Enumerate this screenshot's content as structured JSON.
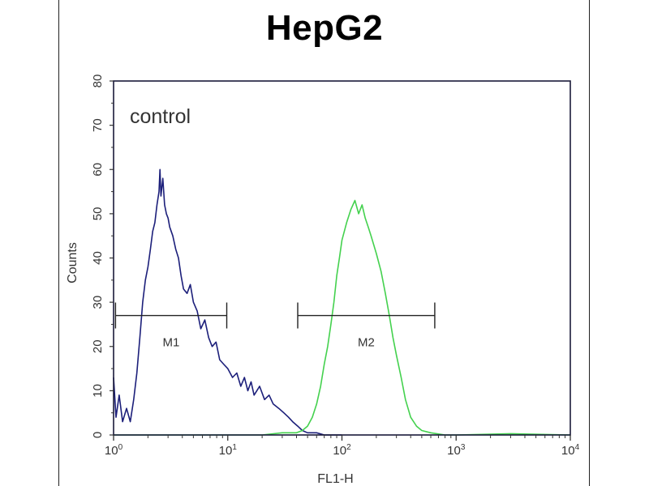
{
  "chart_data": {
    "type": "line",
    "title": "HepG2",
    "xlabel": "FL1-H",
    "ylabel": "Counts",
    "x_scale": "log",
    "xlim": [
      1,
      10000
    ],
    "ylim": [
      0,
      80
    ],
    "x_ticks": [
      {
        "value": 1,
        "base": "10",
        "exp": "0"
      },
      {
        "value": 10,
        "base": "10",
        "exp": "1"
      },
      {
        "value": 100,
        "base": "10",
        "exp": "2"
      },
      {
        "value": 1000,
        "base": "10",
        "exp": "3"
      },
      {
        "value": 10000,
        "base": "10",
        "exp": "4"
      }
    ],
    "y_ticks": [
      "0",
      "10",
      "20",
      "30",
      "40",
      "50",
      "60",
      "70",
      "80"
    ],
    "annotation": "control",
    "series": [
      {
        "color": "#1c1f7a",
        "points": [
          [
            1.0,
            13
          ],
          [
            1.05,
            4
          ],
          [
            1.12,
            9
          ],
          [
            1.2,
            3
          ],
          [
            1.3,
            6
          ],
          [
            1.4,
            3
          ],
          [
            1.5,
            8
          ],
          [
            1.6,
            14
          ],
          [
            1.7,
            22
          ],
          [
            1.8,
            30
          ],
          [
            1.9,
            35
          ],
          [
            2.0,
            38
          ],
          [
            2.1,
            42
          ],
          [
            2.2,
            46
          ],
          [
            2.3,
            48
          ],
          [
            2.4,
            52
          ],
          [
            2.5,
            55
          ],
          [
            2.55,
            60
          ],
          [
            2.6,
            54
          ],
          [
            2.7,
            58
          ],
          [
            2.8,
            52
          ],
          [
            2.9,
            50
          ],
          [
            3.0,
            49
          ],
          [
            3.1,
            47
          ],
          [
            3.3,
            45
          ],
          [
            3.5,
            42
          ],
          [
            3.7,
            40
          ],
          [
            3.9,
            36
          ],
          [
            4.1,
            33
          ],
          [
            4.4,
            32
          ],
          [
            4.7,
            34
          ],
          [
            5.0,
            30
          ],
          [
            5.4,
            28
          ],
          [
            5.8,
            24
          ],
          [
            6.3,
            26
          ],
          [
            6.8,
            22
          ],
          [
            7.3,
            20
          ],
          [
            7.9,
            21
          ],
          [
            8.5,
            17
          ],
          [
            9.2,
            16
          ],
          [
            10,
            15
          ],
          [
            11,
            13
          ],
          [
            12,
            14
          ],
          [
            13,
            11
          ],
          [
            14,
            13
          ],
          [
            15,
            10
          ],
          [
            16,
            12
          ],
          [
            17,
            9
          ],
          [
            19,
            11
          ],
          [
            21,
            8
          ],
          [
            23,
            9
          ],
          [
            25,
            7
          ],
          [
            28,
            6
          ],
          [
            31,
            5
          ],
          [
            34,
            4
          ],
          [
            37,
            3
          ],
          [
            41,
            2
          ],
          [
            45,
            1
          ],
          [
            50,
            0.5
          ],
          [
            60,
            0.5
          ],
          [
            70,
            0
          ],
          [
            100,
            0
          ]
        ]
      },
      {
        "color": "#44d14e",
        "points": [
          [
            1,
            0
          ],
          [
            20,
            0
          ],
          [
            30,
            0.5
          ],
          [
            40,
            0.5
          ],
          [
            45,
            1
          ],
          [
            50,
            2
          ],
          [
            55,
            4
          ],
          [
            60,
            7
          ],
          [
            65,
            11
          ],
          [
            70,
            16
          ],
          [
            75,
            20
          ],
          [
            80,
            25
          ],
          [
            85,
            30
          ],
          [
            90,
            36
          ],
          [
            95,
            40
          ],
          [
            100,
            44
          ],
          [
            110,
            48
          ],
          [
            120,
            51
          ],
          [
            130,
            53
          ],
          [
            140,
            50
          ],
          [
            150,
            52
          ],
          [
            160,
            49
          ],
          [
            170,
            47
          ],
          [
            180,
            45
          ],
          [
            200,
            41
          ],
          [
            220,
            37
          ],
          [
            240,
            32
          ],
          [
            260,
            27
          ],
          [
            280,
            22
          ],
          [
            300,
            18
          ],
          [
            330,
            13
          ],
          [
            360,
            8
          ],
          [
            400,
            4
          ],
          [
            450,
            2
          ],
          [
            500,
            1
          ],
          [
            600,
            0.5
          ],
          [
            800,
            0
          ],
          [
            1000,
            0
          ],
          [
            3000,
            0.3
          ],
          [
            10000,
            0
          ]
        ]
      }
    ],
    "markers": [
      {
        "label": "M1",
        "x_start": 1.04,
        "x_end": 9.8,
        "y": 27
      },
      {
        "label": "M2",
        "x_start": 41,
        "x_end": 650,
        "y": 27
      }
    ]
  }
}
